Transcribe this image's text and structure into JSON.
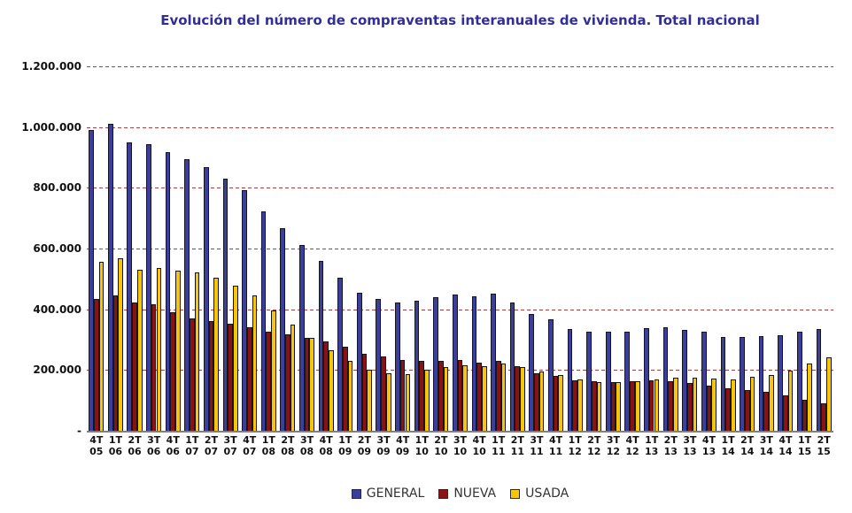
{
  "title": "Evolución del número de compraventas interanuales de vivienda. Total nacional",
  "chart_data": {
    "type": "bar",
    "title": "Evolución del número de compraventas interanuales de vivienda. Total nacional",
    "xlabel": "",
    "ylabel": "",
    "ylim": [
      0,
      1200000
    ],
    "grid": "horizontal-dashed",
    "gridline_color": "#A04040",
    "legend_position": "bottom",
    "y_ticks": [
      {
        "label": "1.200.000",
        "value": 1200000
      },
      {
        "label": "1.000.000",
        "value": 1000000
      },
      {
        "label": "800.000",
        "value": 800000
      },
      {
        "label": "600.000",
        "value": 600000
      },
      {
        "label": "400.000",
        "value": 400000
      },
      {
        "label": "200.000",
        "value": 200000
      },
      {
        "label": "-",
        "value": 0
      }
    ],
    "categories": [
      {
        "quarter": "4T",
        "year": "05"
      },
      {
        "quarter": "1T",
        "year": "06"
      },
      {
        "quarter": "2T",
        "year": "06"
      },
      {
        "quarter": "3T",
        "year": "06"
      },
      {
        "quarter": "4T",
        "year": "06"
      },
      {
        "quarter": "1T",
        "year": "07"
      },
      {
        "quarter": "2T",
        "year": "07"
      },
      {
        "quarter": "3T",
        "year": "07"
      },
      {
        "quarter": "4T",
        "year": "07"
      },
      {
        "quarter": "1T",
        "year": "08"
      },
      {
        "quarter": "2T",
        "year": "08"
      },
      {
        "quarter": "3T",
        "year": "08"
      },
      {
        "quarter": "4T",
        "year": "08"
      },
      {
        "quarter": "1T",
        "year": "09"
      },
      {
        "quarter": "2T",
        "year": "09"
      },
      {
        "quarter": "3T",
        "year": "09"
      },
      {
        "quarter": "4T",
        "year": "09"
      },
      {
        "quarter": "1T",
        "year": "10"
      },
      {
        "quarter": "2T",
        "year": "10"
      },
      {
        "quarter": "3T",
        "year": "10"
      },
      {
        "quarter": "4T",
        "year": "10"
      },
      {
        "quarter": "1T",
        "year": "11"
      },
      {
        "quarter": "2T",
        "year": "11"
      },
      {
        "quarter": "3T",
        "year": "11"
      },
      {
        "quarter": "4T",
        "year": "11"
      },
      {
        "quarter": "1T",
        "year": "12"
      },
      {
        "quarter": "2T",
        "year": "12"
      },
      {
        "quarter": "3T",
        "year": "12"
      },
      {
        "quarter": "4T",
        "year": "12"
      },
      {
        "quarter": "1T",
        "year": "13"
      },
      {
        "quarter": "2T",
        "year": "13"
      },
      {
        "quarter": "3T",
        "year": "13"
      },
      {
        "quarter": "4T",
        "year": "13"
      },
      {
        "quarter": "1T",
        "year": "14"
      },
      {
        "quarter": "2T",
        "year": "14"
      },
      {
        "quarter": "3T",
        "year": "14"
      },
      {
        "quarter": "4T",
        "year": "14"
      },
      {
        "quarter": "1T",
        "year": "15"
      },
      {
        "quarter": "2T",
        "year": "15"
      }
    ],
    "series": [
      {
        "name": "GENERAL",
        "color": "#3B3E9B",
        "values": [
          989000,
          1010000,
          950000,
          945000,
          918000,
          894000,
          867000,
          831000,
          791000,
          722000,
          668000,
          611000,
          560000,
          505000,
          454000,
          435000,
          423000,
          429000,
          439000,
          450000,
          444000,
          452000,
          423000,
          384000,
          366000,
          336000,
          326000,
          325000,
          327000,
          337000,
          341000,
          333000,
          327000,
          310000,
          310000,
          312000,
          315000,
          325000,
          334000
        ]
      },
      {
        "name": "NUEVA",
        "color": "#8B1212",
        "values": [
          433000,
          445000,
          422000,
          416000,
          391000,
          371000,
          362000,
          353000,
          340000,
          327000,
          317000,
          307000,
          295000,
          276000,
          252000,
          244000,
          232000,
          229000,
          229000,
          234000,
          224000,
          229000,
          213000,
          189000,
          181000,
          167000,
          162000,
          159000,
          162000,
          167000,
          163000,
          156000,
          150000,
          140000,
          133000,
          128000,
          117000,
          101000,
          90000
        ]
      },
      {
        "name": "USADA",
        "color": "#F7C608",
        "values": [
          555000,
          567000,
          530000,
          535000,
          527000,
          520000,
          504000,
          477000,
          446000,
          395000,
          350000,
          305000,
          264000,
          229000,
          200000,
          189000,
          186000,
          200000,
          211000,
          216000,
          214000,
          221000,
          210000,
          196000,
          183000,
          170000,
          160000,
          160000,
          162000,
          169000,
          175000,
          176000,
          173000,
          170000,
          177000,
          183000,
          198000,
          220000,
          241000
        ]
      }
    ]
  }
}
